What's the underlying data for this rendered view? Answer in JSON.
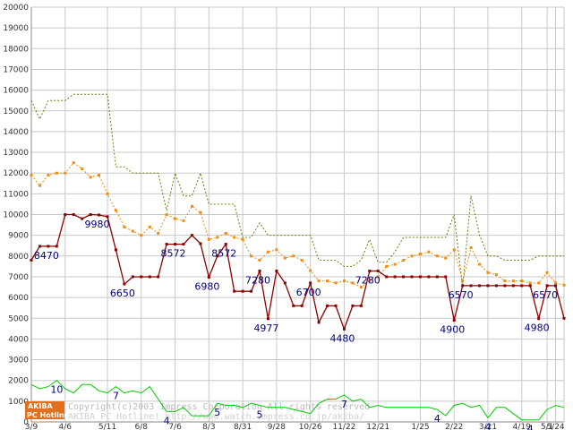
{
  "chart_data": {
    "type": "line",
    "title": "",
    "xlabel": "",
    "ylabel": "",
    "ylim": [
      0,
      20000
    ],
    "y_ticks": [
      "0",
      "1000",
      "2000",
      "3000",
      "4000",
      "5000",
      "6000",
      "7000",
      "8000",
      "9000",
      "10000",
      "11000",
      "12000",
      "13000",
      "14000",
      "15000",
      "16000",
      "17000",
      "18000",
      "19000",
      "20000"
    ],
    "x_ticks": [
      {
        "label": "3/9",
        "i": 0
      },
      {
        "label": "4/6",
        "i": 4
      },
      {
        "label": "5/11",
        "i": 9
      },
      {
        "label": "6/8",
        "i": 13
      },
      {
        "label": "7/6",
        "i": 17
      },
      {
        "label": "8/3",
        "i": 21
      },
      {
        "label": "8/31",
        "i": 25
      },
      {
        "label": "9/28",
        "i": 29
      },
      {
        "label": "10/26",
        "i": 33
      },
      {
        "label": "11/22",
        "i": 37
      },
      {
        "label": "12/21",
        "i": 41
      },
      {
        "label": "1/25",
        "i": 46
      },
      {
        "label": "2/22",
        "i": 50
      },
      {
        "label": "3/21",
        "i": 54
      },
      {
        "label": "4/19",
        "i": 58
      },
      {
        "label": "5/1",
        "i": 61
      },
      {
        "label": "5/24",
        "i": 62
      }
    ],
    "grid": true,
    "n_points": 64,
    "series": [
      {
        "key": "max",
        "color": "#6b7f10",
        "style": "dotted",
        "values": [
          15500,
          14600,
          15500,
          15500,
          15500,
          15800,
          15800,
          15800,
          15800,
          15800,
          12300,
          12300,
          12000,
          12000,
          12000,
          12000,
          10200,
          12000,
          10900,
          10900,
          12000,
          10500,
          10500,
          10500,
          10500,
          8900,
          8900,
          9600,
          9000,
          9000,
          9000,
          9000,
          9000,
          9000,
          7800,
          7800,
          7800,
          7500,
          7500,
          7800,
          8800,
          7700,
          7700,
          8200,
          8900,
          8900,
          8900,
          8900,
          8900,
          8900,
          10000,
          6500,
          10900,
          9000,
          8000,
          8000,
          7800,
          7800,
          7800,
          7800,
          8000,
          8000,
          8000,
          8000
        ]
      },
      {
        "key": "avg",
        "color": "#f08c10",
        "style": "dotted-markers",
        "values": [
          11900,
          11400,
          11900,
          12000,
          12000,
          12500,
          12200,
          11800,
          11900,
          11000,
          10200,
          9400,
          9200,
          9000,
          9400,
          9100,
          10000,
          9800,
          9700,
          10400,
          10100,
          8800,
          8900,
          9100,
          8900,
          8800,
          8000,
          7800,
          8200,
          8300,
          7900,
          8000,
          7800,
          7300,
          6800,
          6800,
          6700,
          6800,
          6700,
          6500,
          6800,
          7000,
          7500,
          7600,
          7800,
          8000,
          8100,
          8200,
          8000,
          7900,
          8300,
          6800,
          8400,
          7600,
          7200,
          7100,
          6800,
          6800,
          6800,
          6700,
          6700,
          7200,
          6700,
          6600
        ]
      },
      {
        "key": "min",
        "color": "#8b0000",
        "style": "solid-markers",
        "values": [
          7800,
          8470,
          8470,
          8470,
          10000,
          10000,
          9800,
          10000,
          9980,
          9900,
          8300,
          6650,
          7000,
          7000,
          7000,
          7000,
          8572,
          8572,
          8572,
          9000,
          8600,
          6980,
          8000,
          8572,
          6300,
          6300,
          6300,
          7280,
          4977,
          7280,
          6700,
          5600,
          5600,
          6700,
          4800,
          5600,
          5600,
          4480,
          5600,
          5600,
          7280,
          7280,
          7000,
          7000,
          7000,
          7000,
          7000,
          7000,
          7000,
          7000,
          4900,
          6570,
          6570,
          6570,
          6570,
          6570,
          6570,
          6570,
          6570,
          6570,
          4980,
          6570,
          6570,
          5000
        ]
      },
      {
        "key": "count",
        "color": "#00cc00",
        "style": "solid",
        "values": [
          1800,
          1600,
          1700,
          2000,
          1600,
          1400,
          1800,
          1800,
          1500,
          1400,
          1700,
          1400,
          1500,
          1400,
          1700,
          1100,
          500,
          500,
          700,
          300,
          300,
          300,
          900,
          800,
          800,
          700,
          900,
          800,
          700,
          700,
          700,
          600,
          500,
          400,
          900,
          1100,
          1100,
          1300,
          1000,
          1100,
          700,
          800,
          700,
          700,
          700,
          700,
          700,
          700,
          600,
          300,
          800,
          900,
          700,
          800,
          200,
          700,
          700,
          400,
          100,
          100,
          100,
          600,
          800,
          700
        ]
      }
    ],
    "min_labels": [
      {
        "i": 2,
        "text": "8470"
      },
      {
        "i": 8,
        "text": "9980"
      },
      {
        "i": 11,
        "text": "6650"
      },
      {
        "i": 17,
        "text": "8572"
      },
      {
        "i": 21,
        "text": "6980"
      },
      {
        "i": 23,
        "text": "8572"
      },
      {
        "i": 27,
        "text": "7280"
      },
      {
        "i": 28,
        "text": "4977"
      },
      {
        "i": 33,
        "text": "6700"
      },
      {
        "i": 37,
        "text": "4480"
      },
      {
        "i": 40,
        "text": "7280"
      },
      {
        "i": 50,
        "text": "4900"
      },
      {
        "i": 51,
        "text": "6570"
      },
      {
        "i": 60,
        "text": "4980"
      },
      {
        "i": 61,
        "text": "6570"
      }
    ],
    "count_labels": [
      {
        "i": 3,
        "text": "10"
      },
      {
        "i": 10,
        "text": "7"
      },
      {
        "i": 16,
        "text": "4"
      },
      {
        "i": 22,
        "text": "5"
      },
      {
        "i": 27,
        "text": "5"
      },
      {
        "i": 37,
        "text": "7"
      },
      {
        "i": 48,
        "text": "4"
      },
      {
        "i": 54,
        "text": "4"
      },
      {
        "i": 59,
        "text": "4"
      }
    ]
  },
  "watermark": {
    "logo_top": "AKIBA",
    "logo_bottom": "PC Hotline",
    "line1": "Copyright(c)2003 Impress Corporation All rights reserved",
    "line2": "AKIBA PC Hotline!  http://www.watch.impress.co.jp/akiba/"
  }
}
